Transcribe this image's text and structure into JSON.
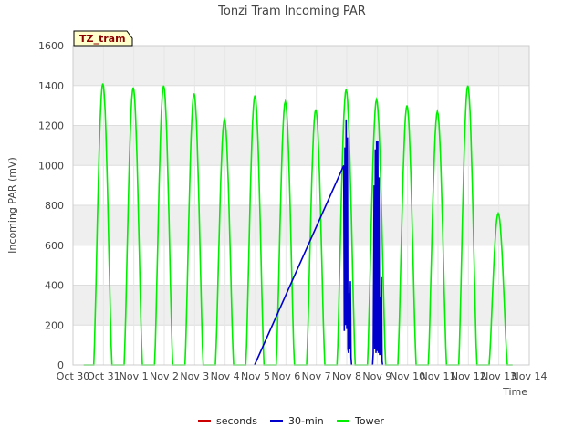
{
  "chart_data": {
    "type": "line",
    "title": "Tonzi Tram Incoming PAR",
    "xlabel": "Time",
    "ylabel": "Incoming PAR (mV)",
    "ylim": [
      0,
      1600
    ],
    "xlim": [
      0,
      15
    ],
    "yticks": [
      0,
      200,
      400,
      600,
      800,
      1000,
      1200,
      1400,
      1600
    ],
    "x_tick_positions": [
      0,
      1,
      2,
      3,
      4,
      5,
      6,
      7,
      8,
      9,
      10,
      11,
      12,
      13,
      14,
      15
    ],
    "x_tick_labels": [
      "Oct 30",
      "Oct 31",
      "Nov 1",
      "Nov 2",
      "Nov 3",
      "Nov 4",
      "Nov 5",
      "Nov 6",
      "Nov 7",
      "Nov 8",
      "Nov 9",
      "Nov 10",
      "Nov 11",
      "Nov 12",
      "Nov 13",
      "Nov 14"
    ],
    "grid": true,
    "legend_position": "bottom-center",
    "annotation_label": "TZ_tram",
    "colors": {
      "seconds": "#cc0000",
      "30-min": "#0000cc",
      "Tower": "#00ee00",
      "band": "#efefef",
      "badge_bg": "#ffffcc"
    },
    "series": [
      {
        "name": "seconds",
        "points": []
      },
      {
        "name": "30-min",
        "note": "straight segment Nov 5 to Nov 8 then dense spikes on Nov 8 and Nov 9",
        "points": [
          [
            5.97,
            0
          ],
          [
            8.9,
            1000
          ],
          [
            8.92,
            170
          ],
          [
            8.94,
            1090
          ],
          [
            8.96,
            200
          ],
          [
            8.98,
            1230
          ],
          [
            9.0,
            180
          ],
          [
            9.02,
            1140
          ],
          [
            9.04,
            80
          ],
          [
            9.06,
            60
          ],
          [
            9.08,
            360
          ],
          [
            9.1,
            80
          ],
          [
            9.12,
            420
          ],
          [
            9.14,
            40
          ],
          [
            9.16,
            0
          ],
          [
            9.85,
            0
          ],
          [
            9.87,
            60
          ],
          [
            9.9,
            900
          ],
          [
            9.92,
            80
          ],
          [
            9.94,
            1080
          ],
          [
            9.96,
            60
          ],
          [
            9.98,
            1120
          ],
          [
            10.0,
            70
          ],
          [
            10.02,
            1120
          ],
          [
            10.04,
            60
          ],
          [
            10.06,
            940
          ],
          [
            10.08,
            50
          ],
          [
            10.1,
            340
          ],
          [
            10.12,
            50
          ],
          [
            10.14,
            440
          ],
          [
            10.16,
            20
          ],
          [
            10.18,
            0
          ]
        ]
      },
      {
        "name": "Tower",
        "daily_peaks": [
          {
            "day": 1,
            "peak": 1410
          },
          {
            "day": 2,
            "peak": 1390
          },
          {
            "day": 3,
            "peak": 1400
          },
          {
            "day": 4,
            "peak": 1360
          },
          {
            "day": 5,
            "peak": 1230
          },
          {
            "day": 6,
            "peak": 1350
          },
          {
            "day": 7,
            "peak": 1320
          },
          {
            "day": 8,
            "peak": 1280
          },
          {
            "day": 9,
            "peak": 1380
          },
          {
            "day": 10,
            "peak": 1330
          },
          {
            "day": 11,
            "peak": 1300
          },
          {
            "day": 12,
            "peak": 1270
          },
          {
            "day": 13,
            "peak": 1400
          },
          {
            "day": 14,
            "peak": 760
          }
        ]
      }
    ]
  }
}
